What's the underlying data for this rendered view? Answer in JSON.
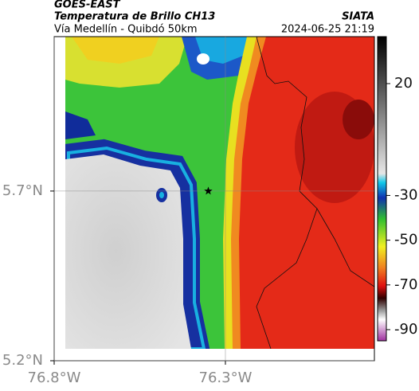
{
  "header": {
    "source": "GOES-EAST",
    "title": "Temperatura de Brillo CH13",
    "subtitle": "Vía Medellín - Quibdó 50km",
    "agency": "SIATA",
    "datetime": "2024-06-25 21:19"
  },
  "map": {
    "xlim": [
      -76.8,
      -75.865
    ],
    "ylim": [
      5.2,
      6.155
    ],
    "xticks": [
      {
        "value": -76.8,
        "label": "76.8°W"
      },
      {
        "value": -76.3,
        "label": "76.3°W"
      }
    ],
    "yticks": [
      {
        "value": 5.2,
        "label": "5.2°N"
      },
      {
        "value": 5.7,
        "label": "5.7°N"
      }
    ],
    "grid": true,
    "marker": {
      "lon": -76.35,
      "lat": 5.7
    }
  },
  "colorbar": {
    "lim": [
      -95,
      41
    ],
    "ticks": [
      20,
      -30,
      -50,
      -70,
      -90
    ]
  }
}
